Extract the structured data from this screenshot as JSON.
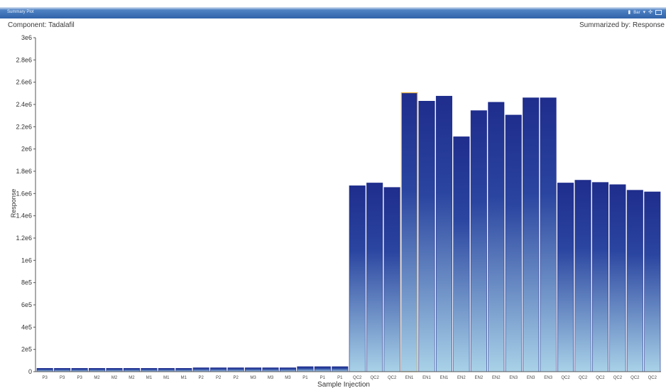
{
  "window": {
    "title": "Summary Plot",
    "chart_type_label": "Bar"
  },
  "header": {
    "component_label": "Component: Tadalafil",
    "summarized_label": "Summarized by: Response"
  },
  "colors": {
    "bar_top": "#1f2d8c",
    "bar_bottom": "#a9d2e8",
    "bar_border": "#ffffff",
    "selected_border": "#e6b23a",
    "axis": "#555555"
  },
  "chart_data": {
    "type": "bar",
    "xlabel": "Sample Injection",
    "ylabel": "Response",
    "ylim": [
      0,
      3000000
    ],
    "yticks": [
      "0",
      "2e5",
      "4e5",
      "6e5",
      "8e5",
      "1e6",
      "1.2e6",
      "1.4e6",
      "1.6e6",
      "1.8e6",
      "2e6",
      "2.2e6",
      "2.4e6",
      "2.6e6",
      "2.8e6",
      "3e6"
    ],
    "categories": [
      "P3",
      "P3",
      "P3",
      "M2",
      "M2",
      "M2",
      "M1",
      "M1",
      "M1",
      "P2",
      "P2",
      "P2",
      "M3",
      "M3",
      "M3",
      "P1",
      "P1",
      "P1",
      "QC2",
      "QC2",
      "QC2",
      "EN1",
      "EN1",
      "EN1",
      "EN2",
      "EN2",
      "EN2",
      "EN3",
      "EN3",
      "EN3",
      "QC2",
      "QC2",
      "QC2",
      "QC2",
      "QC2",
      "QC2"
    ],
    "values": [
      30000,
      30000,
      30000,
      30000,
      30000,
      30000,
      30000,
      30000,
      30000,
      35000,
      35000,
      35000,
      35000,
      35000,
      35000,
      45000,
      45000,
      45000,
      1670000,
      1695000,
      1655000,
      2505000,
      2430000,
      2475000,
      2110000,
      2345000,
      2420000,
      2305000,
      2460000,
      2460000,
      1695000,
      1720000,
      1700000,
      1680000,
      1630000,
      1615000
    ],
    "selected_index": 21,
    "grid": false,
    "legend": "none"
  }
}
